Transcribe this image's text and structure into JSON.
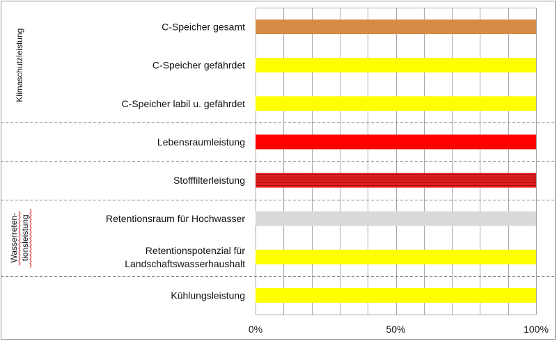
{
  "chart_data": {
    "type": "bar",
    "orientation": "horizontal",
    "stacking": "100% stacked",
    "categories": [
      "C-Speicher gesamt",
      "C-Speicher gefährdet",
      "C-Speicher labil u. gefährdet",
      "Lebensraumleistung",
      "Stofffilterleistung",
      "Retentionsraum für Hochwasser",
      "Retentionspotenzial für Landschaftswasserhaushalt",
      "Kühlungsleistung"
    ],
    "category_lines": [
      [
        "C-Speicher gesamt"
      ],
      [
        "C-Speicher gefährdet"
      ],
      [
        "C-Speicher labil u. gefährdet"
      ],
      [
        "Lebensraumleistung"
      ],
      [
        "Stofffilterleistung"
      ],
      [
        "Retentionsraum für Hochwasser"
      ],
      [
        "Retentionspotenzial für",
        "Landschaftswasserhaushalt"
      ],
      [
        "Kühlungsleistung"
      ]
    ],
    "values": [
      100,
      100,
      100,
      100,
      100,
      100,
      100,
      100
    ],
    "bar_colors": [
      "#d38b45",
      "#ffff00",
      "#ffff00",
      "#ff0000",
      "#d11919",
      "#d9d9d9",
      "#ffff00",
      "#ffff00"
    ],
    "bar_patterns": [
      "solid",
      "solid",
      "solid",
      "solid",
      "horizontal-stripes",
      "solid",
      "solid",
      "solid"
    ],
    "xlim": [
      0,
      100
    ],
    "x_ticks": [
      0,
      50,
      100
    ],
    "x_tick_labels": [
      "0%",
      "50%",
      "100%"
    ],
    "grid": "vertical gridlines every 10%",
    "groups": [
      {
        "label": "Klimaschutzleistung",
        "rows": [
          0,
          2
        ],
        "lines": [
          "Klimaschutzleistung"
        ]
      },
      {
        "label": "Wasserretentionsleistung",
        "rows": [
          5,
          6
        ],
        "lines": [
          "Wasserreten-",
          "tionsleistung"
        ]
      }
    ],
    "title": "",
    "xlabel": "",
    "ylabel": ""
  }
}
